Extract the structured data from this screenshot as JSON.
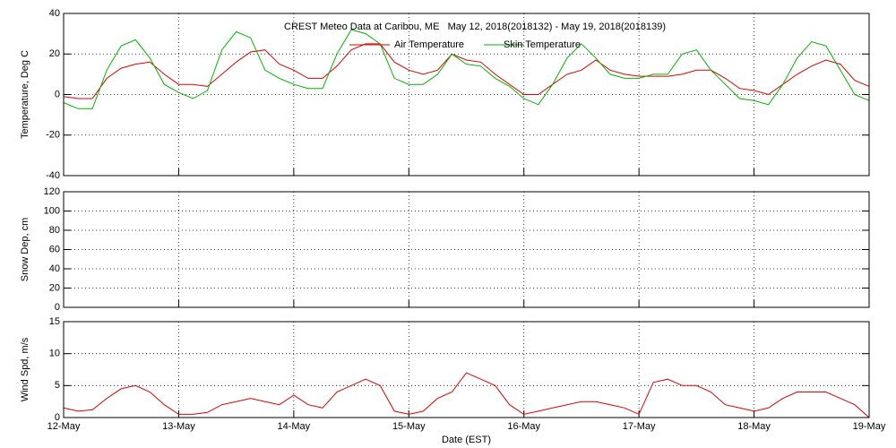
{
  "chart_data": [
    {
      "type": "line",
      "title": "CREST Meteo Data at Caribou, ME   May 12, 2018(2018132) - May 19, 2018(2018139)",
      "ylabel": "Temperature, Deg C",
      "ylim": [
        -40,
        40
      ],
      "yticks": [
        -40,
        -20,
        0,
        20,
        40
      ],
      "xlim": [
        0,
        7
      ],
      "xticks": [
        0,
        1,
        2,
        3,
        4,
        5,
        6,
        7
      ],
      "grid": true,
      "x": [
        0,
        0.125,
        0.25,
        0.375,
        0.5,
        0.625,
        0.75,
        0.875,
        1,
        1.125,
        1.25,
        1.375,
        1.5,
        1.625,
        1.75,
        1.875,
        2,
        2.125,
        2.25,
        2.375,
        2.5,
        2.625,
        2.75,
        2.875,
        3,
        3.125,
        3.25,
        3.375,
        3.5,
        3.625,
        3.75,
        3.875,
        4,
        4.125,
        4.25,
        4.375,
        4.5,
        4.625,
        4.75,
        4.875,
        5,
        5.125,
        5.25,
        5.375,
        5.5,
        5.625,
        5.75,
        5.875,
        6,
        6.125,
        6.25,
        6.375,
        6.5,
        6.625,
        6.75,
        6.875,
        7
      ],
      "series": [
        {
          "name": "Air Temperature",
          "color": "#e00000",
          "values": [
            -1,
            -2,
            -2,
            8,
            13,
            15,
            16,
            10,
            5,
            5,
            4,
            10,
            16,
            21,
            22,
            15,
            12,
            8,
            8,
            14,
            22,
            25,
            25,
            16,
            12,
            10,
            12,
            20,
            17,
            16,
            10,
            5,
            0,
            0,
            5,
            10,
            12,
            17,
            12,
            10,
            9,
            9,
            9,
            10,
            12,
            12,
            8,
            3,
            2,
            0,
            5,
            10,
            14,
            17,
            15,
            7,
            4
          ]
        },
        {
          "name": "Skin Temperature",
          "color": "#00b400",
          "values": [
            -4,
            -7,
            -7,
            12,
            24,
            27,
            18,
            5,
            1,
            -2,
            2,
            22,
            31,
            28,
            12,
            8,
            5,
            3,
            3,
            20,
            32,
            30,
            25,
            8,
            5,
            5,
            10,
            20,
            15,
            14,
            8,
            4,
            -2,
            -5,
            5,
            18,
            25,
            18,
            10,
            8,
            8,
            10,
            10,
            20,
            22,
            12,
            5,
            -2,
            -3,
            -5,
            5,
            18,
            26,
            24,
            12,
            0,
            -3
          ]
        }
      ]
    },
    {
      "type": "line",
      "ylabel": "Snow Dep, cm",
      "ylim": [
        0,
        120
      ],
      "yticks": [
        0,
        20,
        40,
        60,
        80,
        100,
        120
      ],
      "xlim": [
        0,
        7
      ],
      "xticks": [
        0,
        1,
        2,
        3,
        4,
        5,
        6,
        7
      ],
      "grid": true
    },
    {
      "type": "line",
      "ylabel": "Wind Spd, m/s",
      "xlabel": "Date (EST)",
      "ylim": [
        0,
        15
      ],
      "yticks": [
        0,
        5,
        10,
        15
      ],
      "xlim": [
        0,
        7
      ],
      "xticks": [
        {
          "value": 0,
          "label": "12-May"
        },
        {
          "value": 1,
          "label": "13-May"
        },
        {
          "value": 2,
          "label": "14-May"
        },
        {
          "value": 3,
          "label": "15-May"
        },
        {
          "value": 4,
          "label": "16-May"
        },
        {
          "value": 5,
          "label": "17-May"
        },
        {
          "value": 6,
          "label": "18-May"
        },
        {
          "value": 7,
          "label": "19-May"
        }
      ],
      "grid": true,
      "x": [
        0,
        0.125,
        0.25,
        0.375,
        0.5,
        0.625,
        0.75,
        0.875,
        1,
        1.125,
        1.25,
        1.375,
        1.5,
        1.625,
        1.75,
        1.875,
        2,
        2.125,
        2.25,
        2.375,
        2.5,
        2.625,
        2.75,
        2.875,
        3,
        3.125,
        3.25,
        3.375,
        3.5,
        3.625,
        3.75,
        3.875,
        4,
        4.125,
        4.25,
        4.375,
        4.5,
        4.625,
        4.75,
        4.875,
        5,
        5.125,
        5.25,
        5.375,
        5.5,
        5.625,
        5.75,
        5.875,
        6,
        6.125,
        6.25,
        6.375,
        6.5,
        6.625,
        6.75,
        6.875,
        7
      ],
      "series": [
        {
          "name": "Wind Speed",
          "color": "#e00000",
          "values": [
            1.5,
            1,
            1.2,
            3,
            4.5,
            5,
            4,
            2,
            0.5,
            0.5,
            0.8,
            2,
            2.5,
            3,
            2.5,
            2,
            3.5,
            2,
            1.5,
            4,
            5,
            6,
            5,
            1,
            0.5,
            1,
            3,
            4,
            7,
            6,
            5,
            2,
            0.5,
            1,
            1.5,
            2,
            2.5,
            2.5,
            2,
            1.5,
            0.5,
            5.5,
            6,
            5,
            5,
            4,
            2,
            1.5,
            1,
            1.5,
            3,
            4,
            4,
            4,
            3,
            2,
            0
          ]
        }
      ]
    }
  ]
}
